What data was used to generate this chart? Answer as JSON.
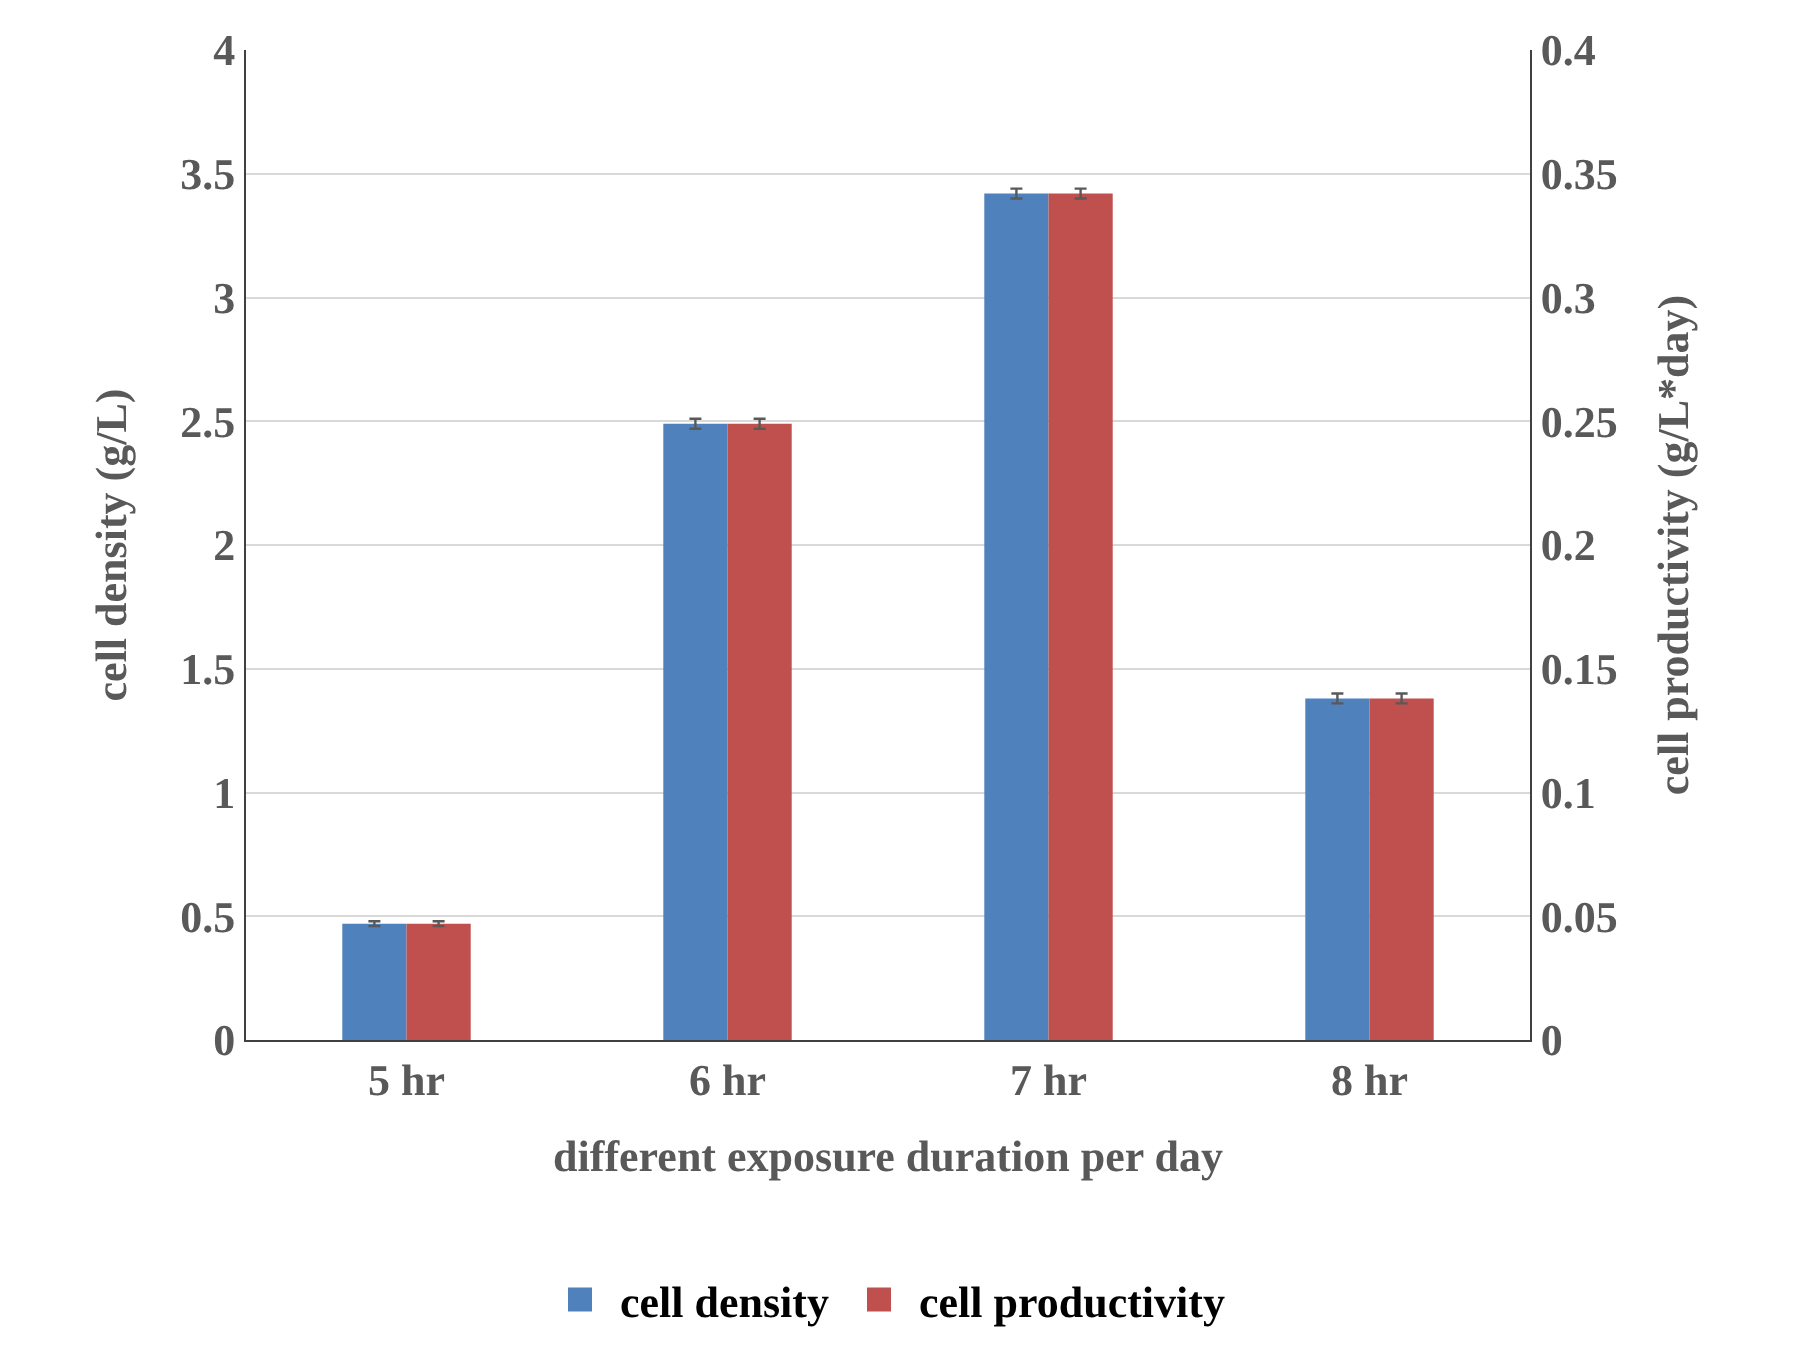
{
  "chart_data": {
    "type": "bar",
    "xlabel": "different exposure duration per day",
    "ylabel": "cell density (g/L)",
    "y2label": "cell productivity (g/L*day)",
    "categories": [
      "5 hr",
      "6 hr",
      "7 hr",
      "8 hr"
    ],
    "series": [
      {
        "name": "cell density",
        "color": "#4f81bd",
        "values": [
          0.47,
          2.49,
          3.42,
          1.38
        ],
        "errors": [
          0.01,
          0.02,
          0.02,
          0.02
        ]
      },
      {
        "name": "cell productivity",
        "color": "#c0504d",
        "axis": "y2",
        "values": [
          0.047,
          0.249,
          0.342,
          0.138
        ],
        "errors": [
          0.001,
          0.002,
          0.002,
          0.002
        ]
      }
    ],
    "ylim": [
      0,
      4
    ],
    "yticks": [
      0,
      0.5,
      1,
      1.5,
      2,
      2.5,
      3,
      3.5,
      4
    ],
    "y2lim": [
      0,
      0.4
    ],
    "y2ticks": [
      0,
      0.05,
      0.1,
      0.15,
      0.2,
      0.25,
      0.3,
      0.35,
      0.4
    ],
    "grid": "y",
    "legend": "bottom"
  }
}
